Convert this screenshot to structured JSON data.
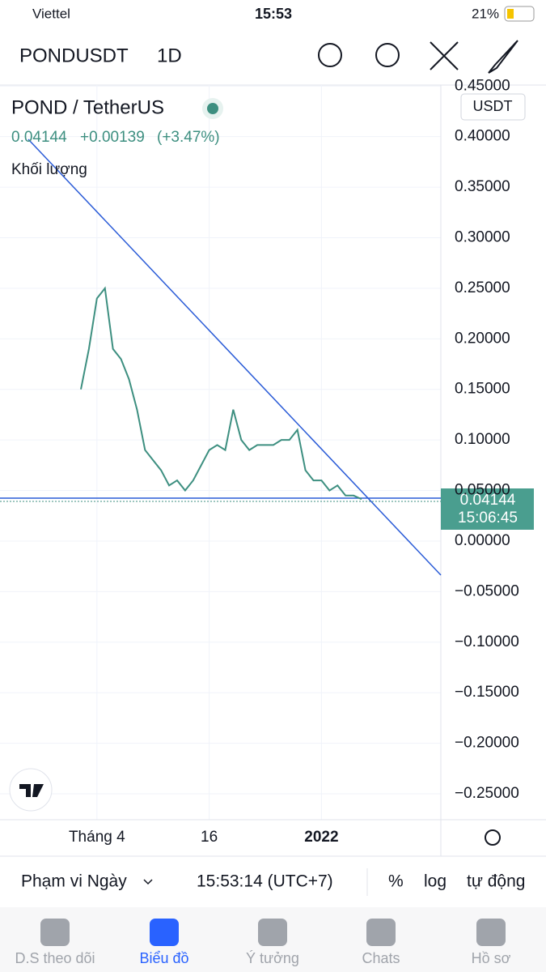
{
  "status_bar": {
    "carrier": "Viettel",
    "time": "15:53",
    "battery": "21%"
  },
  "header": {
    "symbol": "PONDUSDT",
    "interval": "1D"
  },
  "chart_data": {
    "type": "line",
    "title": "POND / TetherUS",
    "price": "0.04144",
    "change": "+0.00139",
    "change_pct": "(+3.47%)",
    "volume_label": "Khối lượng",
    "currency": "USDT",
    "last_price_label": "0.04144",
    "countdown": "15:06:45",
    "categories": [
      null,
      null,
      "Tháng 4",
      null,
      null,
      null,
      null,
      null,
      null,
      null,
      null,
      null,
      null,
      null,
      null,
      null,
      "16",
      null,
      null,
      null,
      null,
      null,
      null,
      null,
      null,
      null,
      null,
      null,
      null,
      null,
      "2022",
      null,
      null,
      null,
      null,
      null
    ],
    "series": [
      {
        "color": "#3d8f80",
        "values": [
          0.15,
          0.19,
          0.24,
          0.25,
          0.19,
          0.18,
          0.16,
          0.13,
          0.09,
          0.08,
          0.07,
          0.055,
          0.06,
          0.05,
          0.06,
          0.075,
          0.09,
          0.095,
          0.09,
          0.13,
          0.1,
          0.09,
          0.095,
          0.095,
          0.095,
          0.1,
          0.1,
          0.11,
          0.07,
          0.06,
          0.06,
          0.05,
          0.055,
          0.045,
          0.045,
          0.04144
        ]
      }
    ],
    "ylim": [
      -0.274,
      0.451
    ],
    "yticks": [
      {
        "value": 0.45,
        "label": "0.45000"
      },
      {
        "value": 0.4,
        "label": "0.40000"
      },
      {
        "value": 0.35,
        "label": "0.35000"
      },
      {
        "value": 0.3,
        "label": "0.30000"
      },
      {
        "value": 0.25,
        "label": "0.25000"
      },
      {
        "value": 0.2,
        "label": "0.20000"
      },
      {
        "value": 0.15,
        "label": "0.15000"
      },
      {
        "value": 0.1,
        "label": "0.10000"
      },
      {
        "value": 0.05,
        "label": "0.05000"
      },
      {
        "value": 0,
        "label": "0.00000"
      },
      {
        "value": -0.05,
        "label": "−0.05000"
      },
      {
        "value": -0.1,
        "label": "−0.10000"
      },
      {
        "value": -0.15,
        "label": "−0.15000"
      },
      {
        "value": -0.2,
        "label": "−0.20000"
      },
      {
        "value": -0.25,
        "label": "−0.25000"
      }
    ],
    "grid": true
  },
  "bottom_bar": {
    "range": "Phạm vi Ngày",
    "clock": "15:53:14 (UTC+7)",
    "percent": "%",
    "log": "log",
    "auto": "tự động"
  },
  "tabs": [
    "D.S theo dõi",
    "Biểu đồ",
    "Ý tưởng",
    "Chats",
    "Hồ sơ"
  ]
}
